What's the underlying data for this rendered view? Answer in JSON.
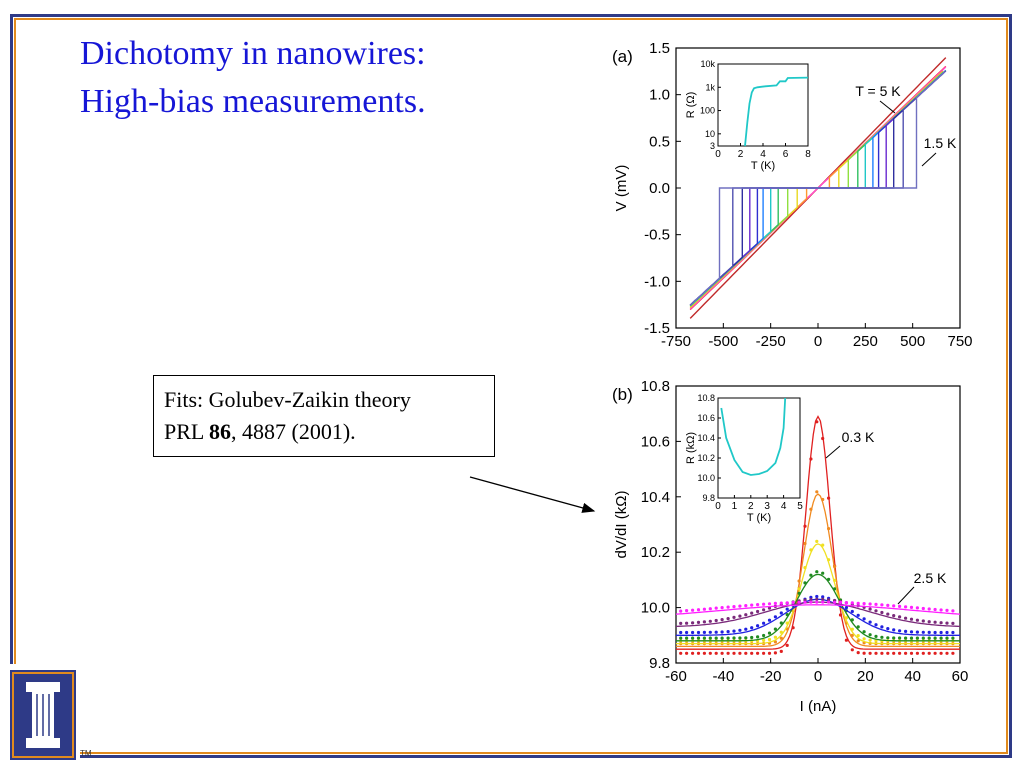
{
  "slide": {
    "title_line1": "Dichotomy in nanowires:",
    "title_line2": "High-bias measurements.",
    "fit_label": "Fits: Golubev-Zaikin theory",
    "fit_ref_prefix": "PRL ",
    "fit_ref_volume": "86",
    "fit_ref_suffix": ", 4887 (2001).",
    "logo_tm": "TM",
    "colors": {
      "title": "#1616d6",
      "frame_outer": "#2e3a87",
      "frame_inner": "#e08a1e",
      "logo": "#2e3a87"
    }
  },
  "chart_data": [
    {
      "id": "a",
      "panel_label": "(a)",
      "type": "line",
      "xlabel": "",
      "ylabel": "V  (mV)",
      "xlim": [
        -750,
        750
      ],
      "ylim": [
        -1.5,
        1.5
      ],
      "xticks": [
        "-750",
        "-500",
        "-250",
        "0",
        "250",
        "500",
        "750"
      ],
      "yticks": [
        "-1.5",
        "-1.0",
        "-0.5",
        "0.0",
        "0.5",
        "1.0",
        "1.5"
      ],
      "annotations": [
        "T = 5 K",
        "1.5 K"
      ],
      "series": [
        {
          "color": "#c02a2a",
          "slope": 0.00207,
          "switch": 0
        },
        {
          "color": "#ff2a2a",
          "slope": 0.00193,
          "switch": 0
        },
        {
          "color": "#ff4fd0",
          "slope": 0.00192,
          "switch": 0
        },
        {
          "color": "#ff9a30",
          "slope": 0.0019,
          "switch": 60
        },
        {
          "color": "#e8d820",
          "slope": 0.00189,
          "switch": 110
        },
        {
          "color": "#90e040",
          "slope": 0.00188,
          "switch": 160
        },
        {
          "color": "#30c060",
          "slope": 0.00187,
          "switch": 210
        },
        {
          "color": "#20c8c8",
          "slope": 0.00187,
          "switch": 250
        },
        {
          "color": "#2080ff",
          "slope": 0.00186,
          "switch": 290
        },
        {
          "color": "#3030d0",
          "slope": 0.00186,
          "switch": 320
        },
        {
          "color": "#6a2ad0",
          "slope": 0.00186,
          "switch": 360
        },
        {
          "color": "#3030a0",
          "slope": 0.00186,
          "switch": 400
        },
        {
          "color": "#5050b0",
          "slope": 0.00186,
          "switch": 450
        },
        {
          "color": "#7070c0",
          "slope": 0.00186,
          "switch": 520
        }
      ],
      "inset": {
        "xlabel": "T  (K)",
        "ylabel": "R  (Ω)",
        "xticks": [
          "0",
          "2",
          "4",
          "6",
          "8"
        ],
        "yticks": [
          "3",
          "10",
          "100",
          "1k",
          "10k"
        ],
        "xlim": [
          0,
          8
        ],
        "ylim_log10": [
          0.477,
          4
        ],
        "points": [
          [
            2.4,
            3
          ],
          [
            2.6,
            30
          ],
          [
            2.8,
            200
          ],
          [
            3.0,
            600
          ],
          [
            3.2,
            900
          ],
          [
            3.5,
            1000
          ],
          [
            4.2,
            1100
          ],
          [
            5.2,
            1200
          ],
          [
            5.5,
            1800
          ],
          [
            6.0,
            1800
          ],
          [
            6.2,
            2500
          ],
          [
            8.0,
            2600
          ]
        ],
        "color": "#20c8c8"
      }
    },
    {
      "id": "b",
      "panel_label": "(b)",
      "type": "line",
      "xlabel": "I  (nA)",
      "ylabel": "dV/dI  (kΩ)",
      "xlim": [
        -60,
        60
      ],
      "ylim": [
        9.8,
        10.8
      ],
      "xticks": [
        "-60",
        "-40",
        "-20",
        "0",
        "20",
        "40",
        "60"
      ],
      "yticks": [
        "9.8",
        "10.0",
        "10.2",
        "10.4",
        "10.6",
        "10.8"
      ],
      "annotations": [
        "0.3 K",
        "2.5 K"
      ],
      "series": [
        {
          "color": "#e02020",
          "base": 9.85,
          "amp": 0.84,
          "width": 5
        },
        {
          "color": "#f08a20",
          "base": 9.86,
          "amp": 0.55,
          "width": 6
        },
        {
          "color": "#f0e020",
          "base": 9.87,
          "amp": 0.36,
          "width": 7
        },
        {
          "color": "#208a20",
          "base": 9.88,
          "amp": 0.24,
          "width": 9
        },
        {
          "color": "#2020e0",
          "base": 9.9,
          "amp": 0.13,
          "width": 14
        },
        {
          "color": "#7a2a7a",
          "base": 9.93,
          "amp": 0.09,
          "width": 22
        },
        {
          "color": "#ff20ff",
          "base": 9.96,
          "amp": 0.05,
          "width": 40
        }
      ],
      "inset": {
        "xlabel": "T  (K)",
        "ylabel": "R  (kΩ)",
        "xticks": [
          "0",
          "1",
          "2",
          "3",
          "4",
          "5"
        ],
        "yticks": [
          "9.8",
          "10.0",
          "10.2",
          "10.4",
          "10.6",
          "10.8"
        ],
        "xlim": [
          0,
          5
        ],
        "ylim": [
          9.8,
          10.8
        ],
        "points": [
          [
            0.2,
            10.7
          ],
          [
            0.5,
            10.4
          ],
          [
            1.0,
            10.18
          ],
          [
            1.5,
            10.06
          ],
          [
            2.0,
            10.03
          ],
          [
            2.5,
            10.04
          ],
          [
            3.0,
            10.07
          ],
          [
            3.5,
            10.15
          ],
          [
            3.8,
            10.3
          ],
          [
            4.0,
            10.5
          ],
          [
            4.1,
            10.8
          ]
        ],
        "color": "#20c8c8"
      }
    }
  ]
}
